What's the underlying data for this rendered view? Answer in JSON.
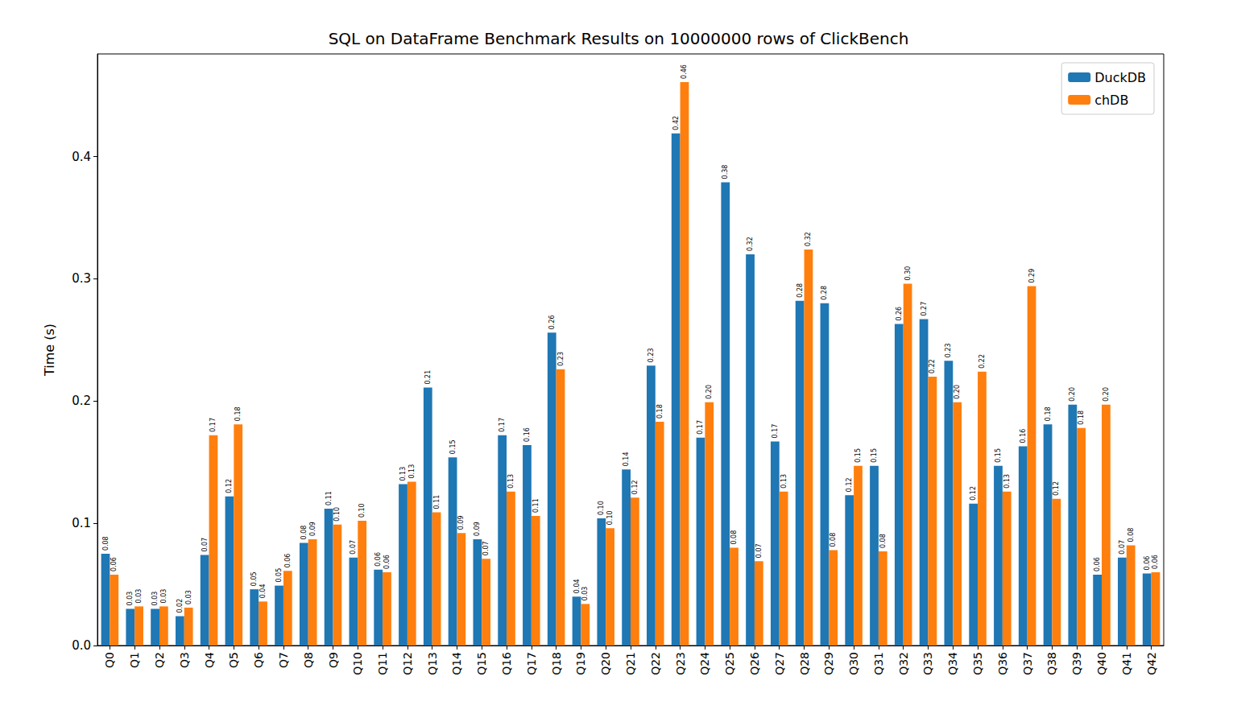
{
  "chart_data": {
    "type": "bar",
    "title": "SQL on DataFrame Benchmark Results on 10000000 rows of ClickBench",
    "y_label": "Time (s)",
    "categories": [
      "Q0",
      "Q1",
      "Q2",
      "Q3",
      "Q4",
      "Q5",
      "Q6",
      "Q7",
      "Q8",
      "Q9",
      "Q10",
      "Q11",
      "Q12",
      "Q13",
      "Q14",
      "Q15",
      "Q16",
      "Q17",
      "Q18",
      "Q19",
      "Q20",
      "Q21",
      "Q22",
      "Q23",
      "Q24",
      "Q25",
      "Q26",
      "Q27",
      "Q28",
      "Q29",
      "Q30",
      "Q31",
      "Q32",
      "Q33",
      "Q34",
      "Q35",
      "Q36",
      "Q37",
      "Q38",
      "Q39",
      "Q40",
      "Q41",
      "Q42"
    ],
    "series": [
      {
        "name": "DuckDB",
        "color": "#1f77b4",
        "values": [
          0.075,
          0.03,
          0.03,
          0.024,
          0.074,
          0.122,
          0.046,
          0.049,
          0.084,
          0.112,
          0.072,
          0.062,
          0.132,
          0.211,
          0.154,
          0.087,
          0.172,
          0.164,
          0.256,
          0.04,
          0.104,
          0.144,
          0.229,
          0.419,
          0.17,
          0.379,
          0.32,
          0.167,
          0.282,
          0.28,
          0.123,
          0.147,
          0.263,
          0.267,
          0.233,
          0.116,
          0.147,
          0.163,
          0.181,
          0.197,
          0.058,
          0.072,
          0.059
        ],
        "value_labels": [
          "0.08",
          "0.03",
          "0.03",
          "0.02",
          "0.07",
          "0.12",
          "0.05",
          "0.05",
          "0.08",
          "0.11",
          "0.07",
          "0.06",
          "0.13",
          "0.21",
          "0.15",
          "0.09",
          "0.17",
          "0.16",
          "0.26",
          "0.04",
          "0.10",
          "0.14",
          "0.23",
          "0.42",
          "0.17",
          "0.38",
          "0.32",
          "0.17",
          "0.28",
          "0.28",
          "0.12",
          "0.15",
          "0.26",
          "0.27",
          "0.23",
          "0.12",
          "0.15",
          "0.16",
          "0.18",
          "0.20",
          "0.06",
          "0.07",
          "0.06"
        ]
      },
      {
        "name": "chDB",
        "color": "#ff7f0e",
        "values": [
          0.058,
          0.032,
          0.032,
          0.031,
          0.172,
          0.181,
          0.036,
          0.061,
          0.087,
          0.099,
          0.102,
          0.06,
          0.134,
          0.109,
          0.092,
          0.071,
          0.126,
          0.106,
          0.226,
          0.034,
          0.096,
          0.121,
          0.183,
          0.461,
          0.199,
          0.08,
          0.069,
          0.126,
          0.324,
          0.078,
          0.147,
          0.077,
          0.296,
          0.22,
          0.199,
          0.224,
          0.126,
          0.294,
          0.12,
          0.178,
          0.197,
          0.082,
          0.06
        ],
        "value_labels": [
          "0.06",
          "0.03",
          "0.03",
          "0.03",
          "0.17",
          "0.18",
          "0.04",
          "0.06",
          "0.09",
          "0.10",
          "0.10",
          "0.06",
          "0.13",
          "0.11",
          "0.09",
          "0.07",
          "0.13",
          "0.11",
          "0.23",
          "0.03",
          "0.10",
          "0.12",
          "0.18",
          "0.46",
          "0.20",
          "0.08",
          "0.07",
          "0.13",
          "0.32",
          "0.08",
          "0.15",
          "0.08",
          "0.30",
          "0.22",
          "0.20",
          "0.22",
          "0.13",
          "0.29",
          "0.12",
          "0.18",
          "0.20",
          "0.08",
          "0.06"
        ]
      }
    ],
    "ylim": [
      0,
      0.484
    ],
    "yticks": [
      {
        "value": 0,
        "label": "0.0"
      },
      0.1,
      0.2,
      0.3,
      0.4
    ],
    "grid": false,
    "legend": "upper right",
    "data_labels": true
  }
}
